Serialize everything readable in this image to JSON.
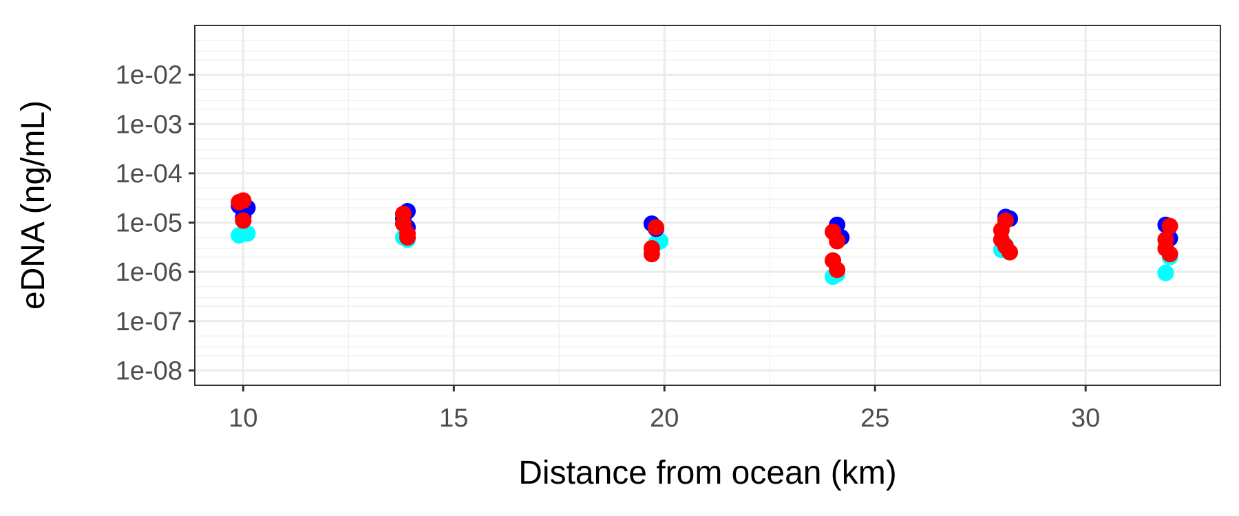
{
  "chart_data": {
    "type": "scatter",
    "title": "",
    "xlabel": "Distance from ocean (km)",
    "ylabel": "eDNA (ng/mL)",
    "x_ticks": [
      10,
      15,
      20,
      25,
      30
    ],
    "x_tick_labels": [
      "10",
      "15",
      "20",
      "25",
      "30"
    ],
    "xlim": [
      8.85,
      33.2
    ],
    "y_scale": "log10",
    "y_ticks": [
      1e-08,
      1e-07,
      1e-06,
      1e-05,
      0.0001,
      0.001,
      0.01
    ],
    "y_tick_labels": [
      "1e-08",
      "1e-07",
      "1e-06",
      "1e-05",
      "1e-04",
      "1e-03",
      "1e-02"
    ],
    "ylim": [
      5e-09,
      0.1
    ],
    "grid": true,
    "legend": "none",
    "series": [
      {
        "color": "#00ffff",
        "points": [
          {
            "x": 9.9,
            "y": 5.5e-06
          },
          {
            "x": 10.1,
            "y": 6e-06
          },
          {
            "x": 13.8,
            "y": 5e-06
          },
          {
            "x": 13.9,
            "y": 4.5e-06
          },
          {
            "x": 19.8,
            "y": 3.8e-06
          },
          {
            "x": 19.9,
            "y": 4.2e-06
          },
          {
            "x": 24.0,
            "y": 8e-07
          },
          {
            "x": 24.1,
            "y": 9e-07
          },
          {
            "x": 28.0,
            "y": 2.8e-06
          },
          {
            "x": 28.1,
            "y": 3.5e-06
          },
          {
            "x": 31.9,
            "y": 9.5e-07
          },
          {
            "x": 32.0,
            "y": 2e-06
          }
        ]
      },
      {
        "color": "#0000ff",
        "points": [
          {
            "x": 9.9,
            "y": 2.2e-05
          },
          {
            "x": 10.1,
            "y": 2e-05
          },
          {
            "x": 10.0,
            "y": 1.3e-05
          },
          {
            "x": 13.8,
            "y": 1.2e-05
          },
          {
            "x": 13.9,
            "y": 1.7e-05
          },
          {
            "x": 13.9,
            "y": 8e-06
          },
          {
            "x": 19.7,
            "y": 9.5e-06
          },
          {
            "x": 19.8,
            "y": 7.5e-06
          },
          {
            "x": 24.1,
            "y": 9e-06
          },
          {
            "x": 24.2,
            "y": 5e-06
          },
          {
            "x": 28.1,
            "y": 1.3e-05
          },
          {
            "x": 28.2,
            "y": 1.2e-05
          },
          {
            "x": 31.9,
            "y": 9e-06
          },
          {
            "x": 32.0,
            "y": 4.8e-06
          }
        ]
      },
      {
        "color": "#ff0000",
        "points": [
          {
            "x": 9.9,
            "y": 2.6e-05
          },
          {
            "x": 10.0,
            "y": 2.8e-05
          },
          {
            "x": 10.0,
            "y": 1.1e-05
          },
          {
            "x": 13.8,
            "y": 1.5e-05
          },
          {
            "x": 13.8,
            "y": 9.5e-06
          },
          {
            "x": 13.9,
            "y": 6e-06
          },
          {
            "x": 13.9,
            "y": 5e-06
          },
          {
            "x": 19.8,
            "y": 8e-06
          },
          {
            "x": 19.7,
            "y": 3e-06
          },
          {
            "x": 19.7,
            "y": 2.3e-06
          },
          {
            "x": 24.0,
            "y": 6.5e-06
          },
          {
            "x": 24.1,
            "y": 4.2e-06
          },
          {
            "x": 24.0,
            "y": 1.7e-06
          },
          {
            "x": 24.1,
            "y": 1.1e-06
          },
          {
            "x": 28.1,
            "y": 1.1e-05
          },
          {
            "x": 28.0,
            "y": 7e-06
          },
          {
            "x": 28.0,
            "y": 4.5e-06
          },
          {
            "x": 28.1,
            "y": 3.3e-06
          },
          {
            "x": 28.2,
            "y": 2.5e-06
          },
          {
            "x": 32.0,
            "y": 8.5e-06
          },
          {
            "x": 31.9,
            "y": 4.5e-06
          },
          {
            "x": 31.9,
            "y": 3e-06
          },
          {
            "x": 32.0,
            "y": 2.3e-06
          }
        ]
      }
    ]
  }
}
